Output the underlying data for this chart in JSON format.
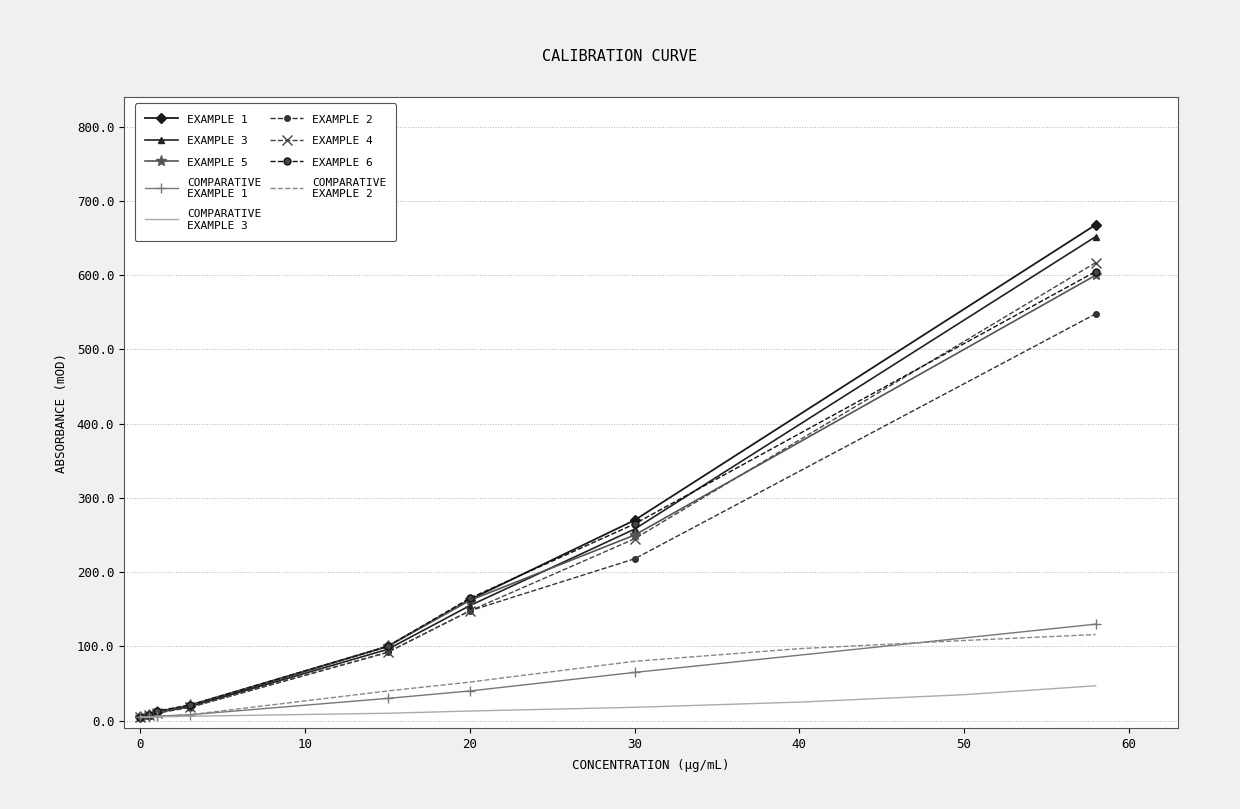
{
  "title": "CALIBRATION CURVE",
  "xlabel": "CONCENTRATION (μg/mL)",
  "ylabel": "ABSORBANCE (mOD)",
  "xlim": [
    -1,
    63
  ],
  "ylim": [
    -10,
    840
  ],
  "xticks": [
    0,
    10,
    20,
    30,
    40,
    50,
    60
  ],
  "yticks": [
    0.0,
    100.0,
    200.0,
    300.0,
    400.0,
    500.0,
    600.0,
    700.0,
    800.0
  ],
  "series": [
    {
      "label": "EXAMPLE 1",
      "x": [
        0,
        0.5,
        1,
        3,
        15,
        20,
        30,
        58
      ],
      "y": [
        5,
        8,
        12,
        20,
        100,
        163,
        270,
        668
      ],
      "color": "#1a1a1a",
      "linestyle": "-",
      "marker": "D",
      "markersize": 5,
      "linewidth": 1.3
    },
    {
      "label": "EXAMPLE 2",
      "x": [
        0,
        0.5,
        1,
        3,
        15,
        20,
        30,
        58
      ],
      "y": [
        5,
        7,
        10,
        18,
        92,
        148,
        218,
        548
      ],
      "color": "#333333",
      "linestyle": "--",
      "marker": "o",
      "markersize": 4,
      "linewidth": 1.0
    },
    {
      "label": "EXAMPLE 3",
      "x": [
        0,
        0.5,
        1,
        3,
        15,
        20,
        30,
        58
      ],
      "y": [
        5,
        7,
        11,
        19,
        96,
        155,
        258,
        652
      ],
      "color": "#222222",
      "linestyle": "-",
      "marker": "^",
      "markersize": 5,
      "linewidth": 1.2
    },
    {
      "label": "EXAMPLE 4",
      "x": [
        0,
        0.5,
        1,
        3,
        15,
        20,
        30,
        58
      ],
      "y": [
        5,
        7,
        11,
        18,
        92,
        148,
        245,
        617
      ],
      "color": "#444444",
      "linestyle": "--",
      "marker": "x",
      "markersize": 7,
      "linewidth": 1.0
    },
    {
      "label": "EXAMPLE 5",
      "x": [
        0,
        0.5,
        1,
        3,
        15,
        20,
        30,
        58
      ],
      "y": [
        5,
        8,
        12,
        21,
        100,
        162,
        250,
        600
      ],
      "color": "#555555",
      "linestyle": "-",
      "marker": "*",
      "markersize": 8,
      "linewidth": 1.2
    },
    {
      "label": "EXAMPLE 6",
      "x": [
        0,
        0.5,
        1,
        3,
        15,
        20,
        30,
        58
      ],
      "y": [
        5,
        8,
        13,
        21,
        100,
        165,
        265,
        605
      ],
      "color": "#111111",
      "linestyle": "--",
      "marker": "o",
      "markersize": 5,
      "linewidth": 1.0,
      "markerfacecolor": "#444444"
    },
    {
      "label": "COMPARATIVE\nEXAMPLE 1",
      "x": [
        0,
        0.5,
        1,
        3,
        15,
        20,
        30,
        58
      ],
      "y": [
        5,
        5,
        6,
        8,
        30,
        40,
        65,
        130
      ],
      "color": "#777777",
      "linestyle": "-",
      "marker": "+",
      "markersize": 7,
      "linewidth": 1.0
    },
    {
      "label": "COMPARATIVE\nEXAMPLE 2",
      "x": [
        0,
        0.5,
        1,
        3,
        15,
        20,
        30,
        40,
        50,
        58
      ],
      "y": [
        5,
        5,
        6,
        8,
        40,
        52,
        80,
        97,
        108,
        116
      ],
      "color": "#888888",
      "linestyle": "--",
      "marker": null,
      "markersize": 4,
      "linewidth": 1.0
    },
    {
      "label": "COMPARATIVE\nEXAMPLE 3",
      "x": [
        0,
        0.5,
        1,
        3,
        15,
        20,
        30,
        40,
        50,
        58
      ],
      "y": [
        5,
        5,
        5,
        6,
        10,
        13,
        18,
        25,
        35,
        47
      ],
      "color": "#aaaaaa",
      "linestyle": "-",
      "marker": null,
      "markersize": 4,
      "linewidth": 1.0
    }
  ],
  "background_color": "#f0f0f0",
  "plot_bg_color": "#ffffff",
  "grid_color": "#aaaaaa",
  "title_fontsize": 11,
  "axis_label_fontsize": 9,
  "tick_fontsize": 9,
  "legend_fontsize": 8
}
